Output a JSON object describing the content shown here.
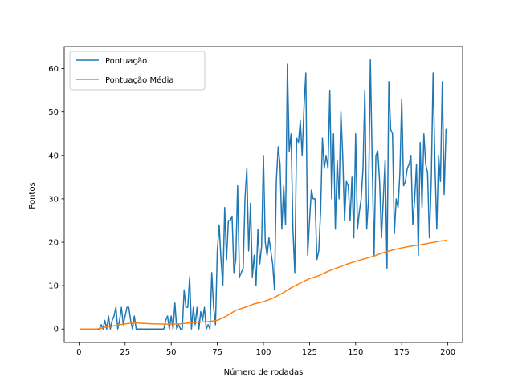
{
  "chart_data": {
    "type": "line",
    "xlabel": "Número de rodadas",
    "ylabel": "Pontos",
    "xlim": [
      -8,
      208
    ],
    "ylim": [
      -3.1,
      65.1
    ],
    "xticks": [
      0,
      25,
      50,
      75,
      100,
      125,
      150,
      175,
      200
    ],
    "yticks": [
      0,
      10,
      20,
      30,
      40,
      50,
      60
    ],
    "grid": false,
    "legend_position": "top-left",
    "series": [
      {
        "name": "Pontuação",
        "color": "#1f77b4",
        "x": [
          1,
          2,
          3,
          4,
          5,
          6,
          7,
          8,
          9,
          10,
          11,
          12,
          13,
          14,
          15,
          16,
          17,
          18,
          19,
          20,
          21,
          22,
          23,
          24,
          25,
          26,
          27,
          28,
          29,
          30,
          31,
          32,
          33,
          34,
          35,
          36,
          37,
          38,
          39,
          40,
          41,
          42,
          43,
          44,
          45,
          46,
          47,
          48,
          49,
          50,
          51,
          52,
          53,
          54,
          55,
          56,
          57,
          58,
          59,
          60,
          61,
          62,
          63,
          64,
          65,
          66,
          67,
          68,
          69,
          70,
          71,
          72,
          73,
          74,
          75,
          76,
          77,
          78,
          79,
          80,
          81,
          82,
          83,
          84,
          85,
          86,
          87,
          88,
          89,
          90,
          91,
          92,
          93,
          94,
          95,
          96,
          97,
          98,
          99,
          100,
          101,
          102,
          103,
          104,
          105,
          106,
          107,
          108,
          109,
          110,
          111,
          112,
          113,
          114,
          115,
          116,
          117,
          118,
          119,
          120,
          121,
          122,
          123,
          124,
          125,
          126,
          127,
          128,
          129,
          130,
          131,
          132,
          133,
          134,
          135,
          136,
          137,
          138,
          139,
          140,
          141,
          142,
          143,
          144,
          145,
          146,
          147,
          148,
          149,
          150,
          151,
          152,
          153,
          154,
          155,
          156,
          157,
          158,
          159,
          160,
          161,
          162,
          163,
          164,
          165,
          166,
          167,
          168,
          169,
          170,
          171,
          172,
          173,
          174,
          175,
          176,
          177,
          178,
          179,
          180,
          181,
          182,
          183,
          184,
          185,
          186,
          187,
          188,
          189,
          190,
          191,
          192,
          193,
          194,
          195,
          196,
          197,
          198,
          199
        ],
        "values": [
          0,
          0,
          0,
          0,
          0,
          0,
          0,
          0,
          0,
          0,
          0,
          1,
          0,
          2,
          0,
          3,
          0,
          2,
          3,
          5,
          0,
          2,
          5,
          1,
          3,
          5,
          5,
          2,
          0,
          3,
          0,
          0,
          0,
          0,
          0,
          0,
          0,
          0,
          0,
          0,
          0,
          0,
          0,
          0,
          0,
          0,
          2,
          3,
          0,
          3,
          0,
          6,
          0,
          1,
          0,
          0,
          9,
          5,
          5,
          12,
          0,
          5,
          1,
          5,
          0,
          4,
          2,
          5,
          0,
          1,
          0,
          13,
          5,
          1,
          18,
          24,
          16,
          10,
          28,
          16,
          25,
          25,
          26,
          13,
          16,
          33,
          12,
          13,
          14,
          30,
          37,
          18,
          29,
          12,
          17,
          10,
          23,
          15,
          19,
          40,
          20,
          17,
          21,
          18,
          15,
          9,
          34,
          42,
          38,
          23,
          33,
          24,
          61,
          41,
          45,
          23,
          13,
          44,
          43,
          48,
          40,
          51,
          59,
          17,
          25,
          32,
          30,
          30,
          16,
          18,
          27,
          44,
          37,
          40,
          37,
          55,
          30,
          45,
          23,
          39,
          30,
          50,
          40,
          25,
          34,
          33,
          25,
          35,
          21,
          45,
          23,
          27,
          30,
          37,
          55,
          23,
          30,
          62,
          38,
          17,
          40,
          41,
          34,
          21,
          30,
          39,
          14,
          57,
          46,
          45,
          22,
          30,
          28,
          36,
          53,
          33,
          34,
          37,
          38,
          40,
          24,
          30,
          38,
          17,
          43,
          28,
          45,
          38,
          36,
          21,
          34,
          59,
          38,
          23,
          40,
          34,
          57,
          31,
          46
        ]
      },
      {
        "name": "Pontuação Média",
        "color": "#ff7f0e",
        "x": [
          1,
          10,
          15,
          20,
          25,
          30,
          40,
          50,
          55,
          60,
          65,
          70,
          75,
          80,
          85,
          90,
          95,
          100,
          105,
          110,
          115,
          120,
          125,
          130,
          135,
          140,
          145,
          150,
          155,
          160,
          165,
          170,
          175,
          180,
          185,
          190,
          195,
          199
        ],
        "values": [
          0,
          0,
          0.5,
          0.8,
          1.2,
          1.4,
          1.2,
          1.1,
          1.2,
          1.4,
          1.6,
          1.7,
          2.0,
          3.0,
          4.3,
          5.0,
          5.8,
          6.3,
          7.1,
          8.2,
          9.5,
          10.6,
          11.6,
          12.3,
          13.3,
          14.1,
          14.9,
          15.6,
          16.2,
          16.8,
          17.6,
          18.2,
          18.7,
          19.1,
          19.4,
          19.8,
          20.2,
          20.4
        ]
      }
    ]
  }
}
